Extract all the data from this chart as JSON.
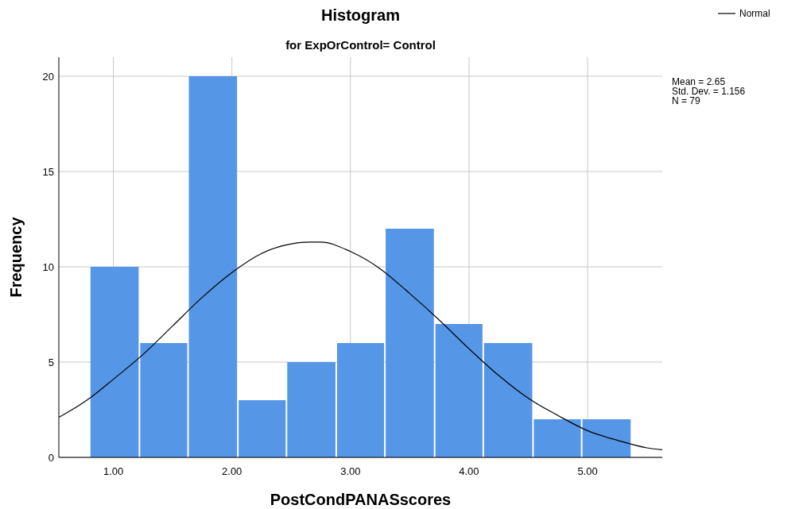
{
  "chart_data": {
    "type": "histogram",
    "title": "Histogram",
    "subtitle": "for ExpOrControl= Control",
    "xlabel": "PostCondPANASscores",
    "ylabel": "Frequency",
    "bins": [
      0.8,
      1.22,
      1.63,
      2.05,
      2.46,
      2.88,
      3.29,
      3.71,
      4.12,
      4.54,
      4.95,
      5.37
    ],
    "values": [
      10,
      6,
      20,
      3,
      5,
      6,
      12,
      7,
      6,
      2,
      2
    ],
    "color": "#5596e6",
    "series": [
      {
        "type": "line",
        "name": "Normal",
        "color": "#000000",
        "x": [
          0.54,
          0.8,
          1.0,
          1.25,
          1.5,
          1.75,
          2.0,
          2.25,
          2.5,
          2.65,
          2.75,
          3.0,
          3.25,
          3.5,
          3.75,
          4.0,
          4.25,
          4.5,
          4.75,
          5.0,
          5.25,
          5.5,
          5.63
        ],
        "values": [
          2.1,
          3.1,
          4.1,
          5.4,
          6.9,
          8.4,
          9.7,
          10.7,
          11.2,
          11.3,
          11.3,
          10.8,
          9.9,
          8.6,
          7.2,
          5.7,
          4.3,
          3.1,
          2.2,
          1.4,
          0.9,
          0.5,
          0.4
        ]
      }
    ],
    "annotations": [
      "Mean = 2.65",
      "Std. Dev. = 1.156",
      "N = 79"
    ],
    "xlim": [
      0.54,
      5.63
    ],
    "ylim": [
      0,
      21
    ],
    "xticks": [
      {
        "value": 1,
        "label": "1.00"
      },
      {
        "value": 2,
        "label": "2.00"
      },
      {
        "value": 3,
        "label": "3.00"
      },
      {
        "value": 4,
        "label": "4.00"
      },
      {
        "value": 5,
        "label": "5.00"
      }
    ],
    "yticks": [
      0,
      5,
      10,
      15,
      20
    ],
    "grid": true,
    "legend": "top right"
  }
}
